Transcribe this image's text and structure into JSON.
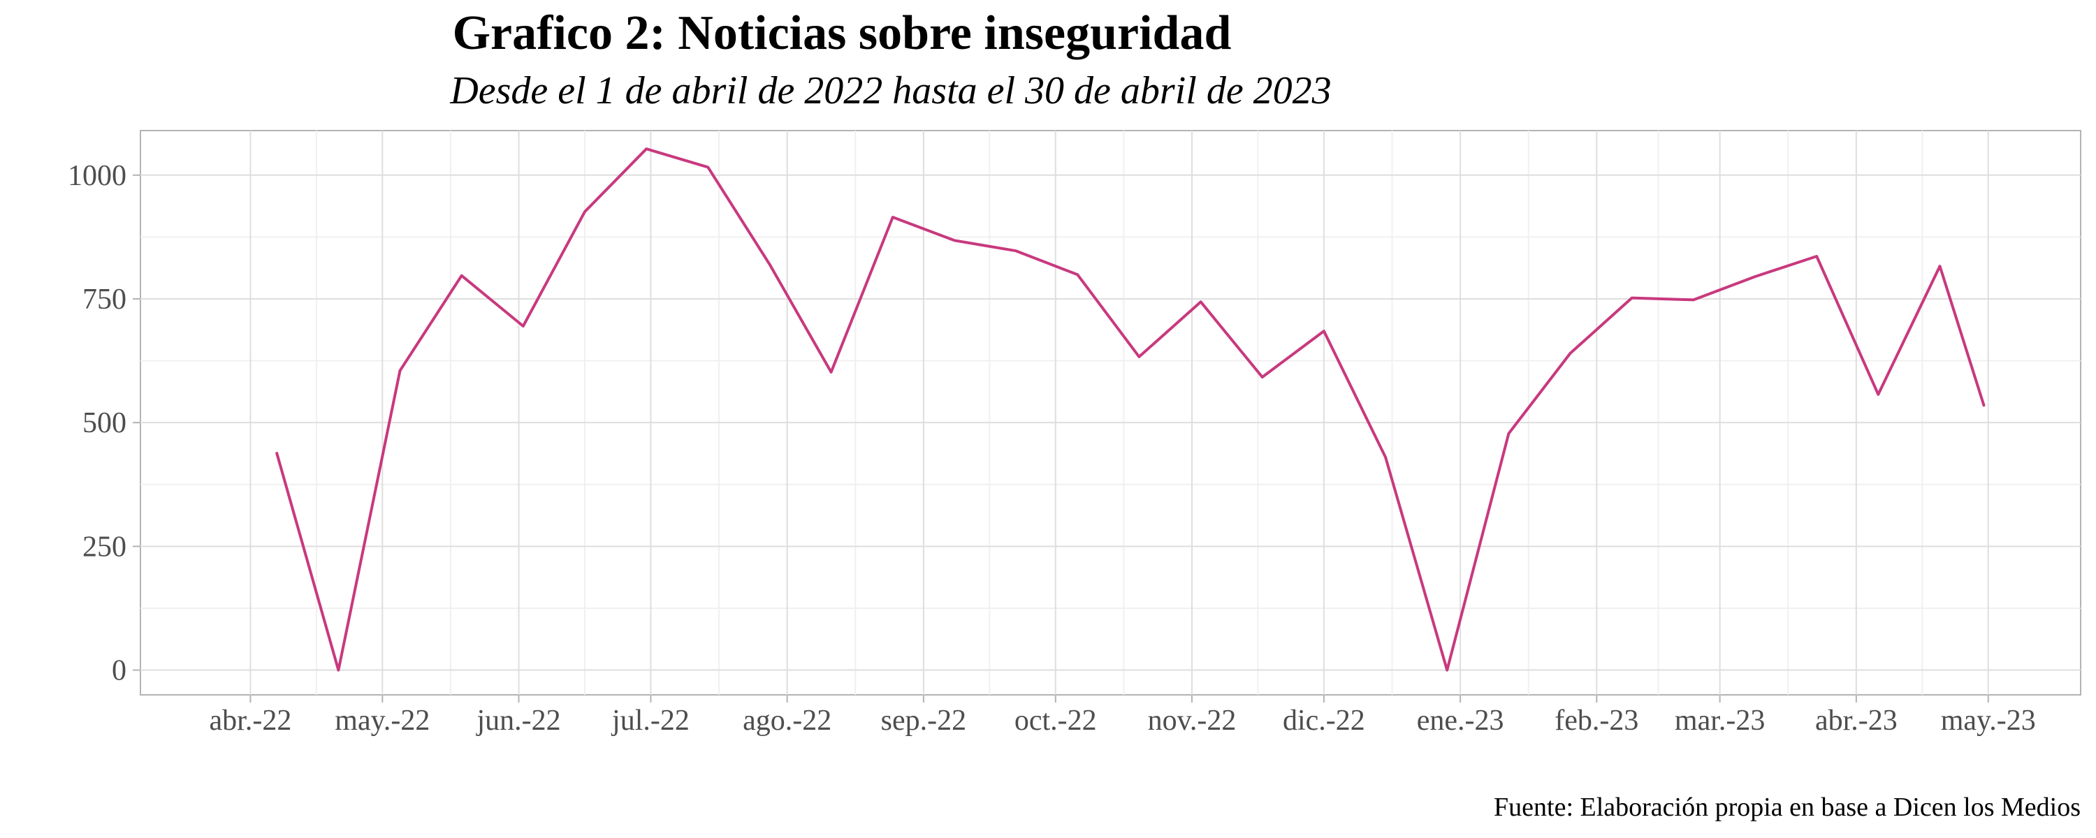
{
  "chart_data": {
    "type": "line",
    "title": "Grafico 2: Noticias sobre inseguridad",
    "subtitle": "Desde el 1 de abril de 2022 hasta el 30 de abril de 2023",
    "caption": "Fuente: Elaboración propia en base a Dicen los Medios",
    "xlabel": "",
    "ylabel": "",
    "xlim": [
      "2022-03-07",
      "2023-05-22"
    ],
    "ylim": [
      -50,
      1090
    ],
    "y_ticks": [
      0,
      250,
      500,
      750,
      1000
    ],
    "y_tick_labels": [
      "0",
      "250",
      "500",
      "750",
      "1000"
    ],
    "y_minor_ticks": [
      125,
      375,
      625,
      875
    ],
    "x_ticks": [
      "2022-04-01",
      "2022-05-01",
      "2022-06-01",
      "2022-07-01",
      "2022-08-01",
      "2022-09-01",
      "2022-10-01",
      "2022-11-01",
      "2022-12-01",
      "2023-01-01",
      "2023-02-01",
      "2023-03-01",
      "2023-04-01",
      "2023-05-01"
    ],
    "x_tick_labels": [
      "abr.-22",
      "may.-22",
      "jun.-22",
      "jul.-22",
      "ago.-22",
      "sep.-22",
      "oct.-22",
      "nov.-22",
      "dic.-22",
      "ene.-23",
      "feb.-23",
      "mar.-23",
      "abr.-23",
      "may.-23"
    ],
    "grid": true,
    "line_color": "#c8397e",
    "series": [
      {
        "x": [
          "2022-04-07",
          "2022-04-21",
          "2022-05-05",
          "2022-05-19",
          "2022-06-02",
          "2022-06-16",
          "2022-06-30",
          "2022-07-14",
          "2022-07-28",
          "2022-08-11",
          "2022-08-25",
          "2022-09-08",
          "2022-09-22",
          "2022-10-06",
          "2022-10-20",
          "2022-11-03",
          "2022-11-17",
          "2022-12-01",
          "2022-12-15",
          "2022-12-29",
          "2023-01-12",
          "2023-01-26",
          "2023-02-09",
          "2023-02-23",
          "2023-03-09",
          "2023-03-23",
          "2023-04-06",
          "2023-04-20"
        ],
        "values": [
          438,
          0,
          605,
          797,
          695,
          926,
          1053,
          1016,
          820,
          602,
          915,
          868,
          847,
          799,
          633,
          744,
          592,
          685,
          430,
          0,
          478,
          640,
          752,
          748,
          795,
          836,
          557,
          816
        ]
      }
    ],
    "trailing_point": {
      "x": "2023-04-30",
      "value": 535
    }
  }
}
